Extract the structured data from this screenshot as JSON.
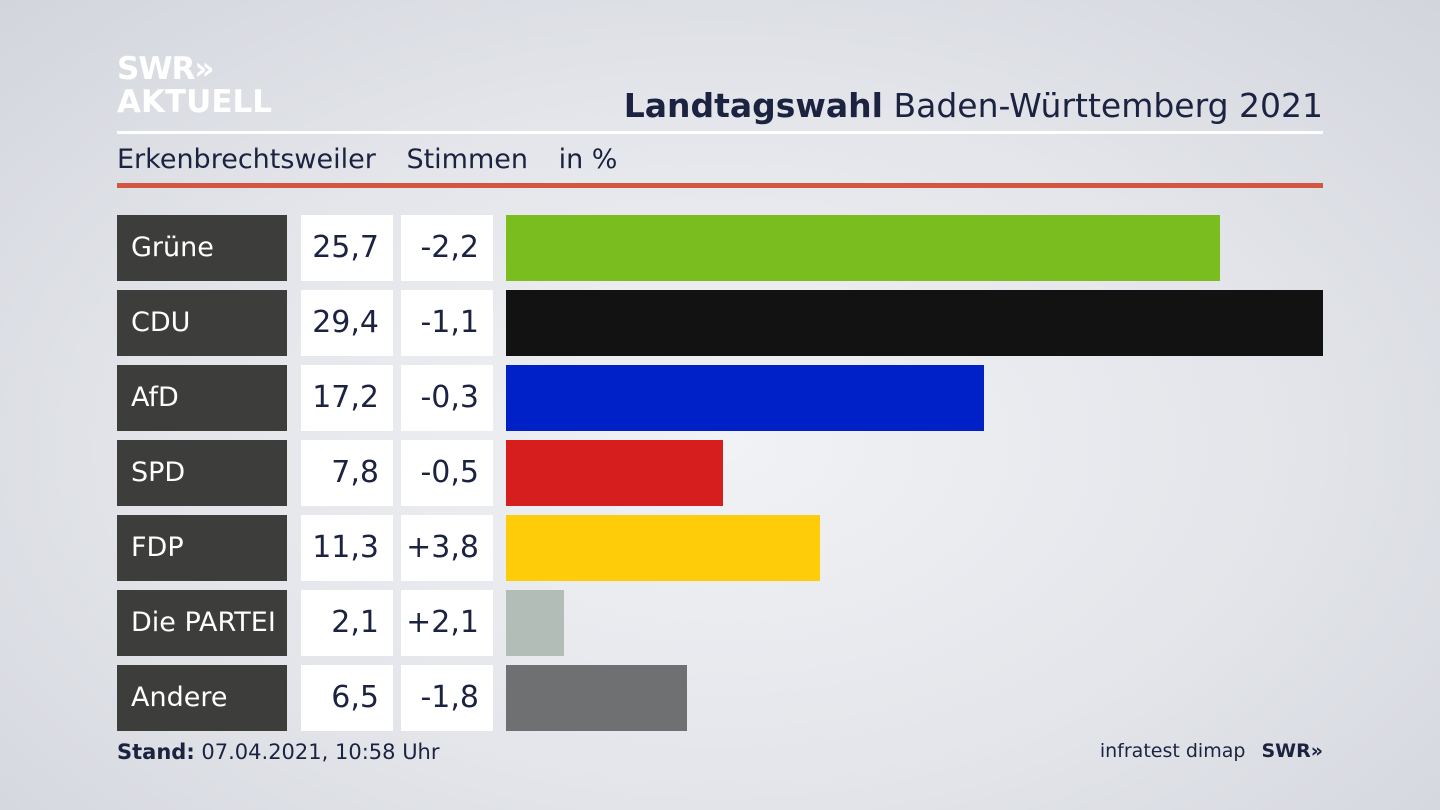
{
  "brand": {
    "line1": "SWR»",
    "line2": "AKTUELL"
  },
  "header": {
    "title_bold": "Landtagswahl",
    "title_rest": "Baden-Württemberg 2021"
  },
  "subheader": {
    "place": "Erkenbrechtsweiler",
    "measure": "Stimmen",
    "unit": "in %"
  },
  "chart_data": {
    "type": "bar",
    "orientation": "horizontal",
    "categories": [
      "Grüne",
      "CDU",
      "AfD",
      "SPD",
      "FDP",
      "Die PARTEI",
      "Andere"
    ],
    "values": [
      "25,7",
      "29,4",
      "17,2",
      "7,8",
      "11,3",
      "2,1",
      "6,5"
    ],
    "values_numeric": [
      25.7,
      29.4,
      17.2,
      7.8,
      11.3,
      2.1,
      6.5
    ],
    "changes": [
      "-2,2",
      "-1,1",
      "-0,3",
      "-0,5",
      "+3,8",
      "+2,1",
      "-1,8"
    ],
    "colors": [
      "#79bd1e",
      "#121212",
      "#0021c7",
      "#d71e1e",
      "#ffcc0a",
      "#b3bdb7",
      "#6f7072"
    ],
    "xlim": [
      0,
      29.4
    ]
  },
  "footer": {
    "stand_label": "Stand:",
    "stand_value": "07.04.2021, 10:58 Uhr",
    "source": "infratest dimap",
    "brand": "SWR»"
  }
}
